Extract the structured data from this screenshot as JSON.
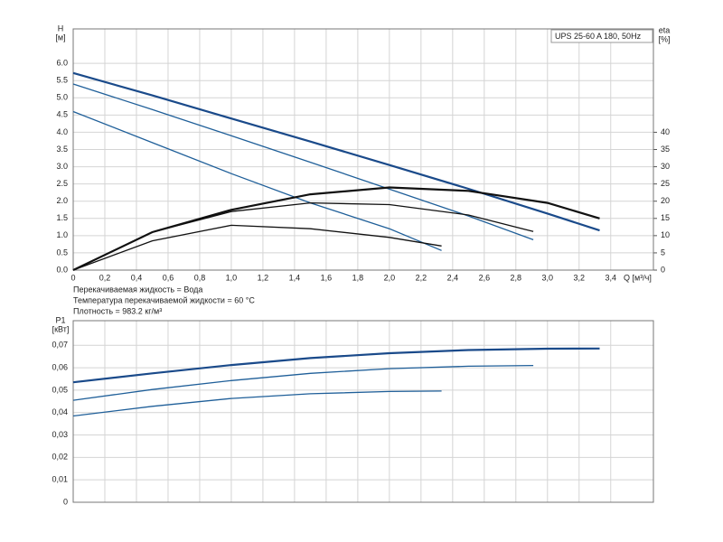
{
  "chart_data": [
    {
      "type": "line",
      "legend_box": "UPS 25-60 A 180, 50Hz",
      "ylabel": "H",
      "yunit": "[м]",
      "y2label": "eta",
      "y2unit": "[%]",
      "xlabel": "Q [м³/ч]",
      "annotations": [
        "Перекачиваемая жидкость = Вода",
        "Температура перекачиваемой жидкости = 60 °C",
        "Плотность = 983.2 кг/м³"
      ],
      "xlim": [
        0,
        3.67
      ],
      "ylim": [
        0,
        7
      ],
      "y2lim": [
        0,
        70
      ],
      "xticks": [
        0,
        {
          "value": 0.2,
          "label": "0,2"
        },
        {
          "value": 0.4,
          "label": "0,4"
        },
        {
          "value": 0.6,
          "label": "0,6"
        },
        {
          "value": 0.8,
          "label": "0,8"
        },
        {
          "value": 1.0,
          "label": "1,0"
        },
        {
          "value": 1.2,
          "label": "1,2"
        },
        {
          "value": 1.4,
          "label": "1,4"
        },
        {
          "value": 1.6,
          "label": "1,6"
        },
        {
          "value": 1.8,
          "label": "1,8"
        },
        {
          "value": 2.0,
          "label": "2,0"
        },
        {
          "value": 2.2,
          "label": "2,2"
        },
        {
          "value": 2.4,
          "label": "2,4"
        },
        {
          "value": 2.6,
          "label": "2,6"
        },
        {
          "value": 2.8,
          "label": "2,8"
        },
        {
          "value": 3.0,
          "label": "3,0"
        },
        {
          "value": 3.2,
          "label": "3,2"
        },
        {
          "value": 3.4,
          "label": "3,4"
        }
      ],
      "yticks": [
        {
          "value": 0,
          "label": "0.0"
        },
        0.5,
        {
          "value": 1,
          "label": "1.0"
        },
        1.5,
        {
          "value": 2,
          "label": "2.0"
        },
        2.5,
        {
          "value": 3,
          "label": "3.0"
        },
        3.5,
        {
          "value": 4,
          "label": "4.0"
        },
        4.5,
        {
          "value": 5,
          "label": "5.0"
        },
        5.5,
        {
          "value": 6,
          "label": "6.0"
        }
      ],
      "y2ticks": [
        0,
        5,
        10,
        15,
        20,
        25,
        30,
        35,
        40
      ],
      "grid": true,
      "series": [
        {
          "color": "#1a4a8a",
          "x": [
            0,
            0.5,
            1,
            1.5,
            2,
            2.5,
            3,
            3.33
          ],
          "values": [
            5.72,
            5.07,
            4.4,
            3.73,
            3.05,
            2.36,
            1.64,
            1.15
          ]
        },
        {
          "color": "#1f5f99",
          "x": [
            0,
            0.5,
            1,
            1.5,
            2,
            2.5,
            2.91
          ],
          "values": [
            5.4,
            4.66,
            3.9,
            3.13,
            2.35,
            1.57,
            0.88
          ]
        },
        {
          "color": "#1f5f99",
          "x": [
            0,
            0.5,
            1,
            1.5,
            2,
            2.33
          ],
          "values": [
            4.6,
            3.7,
            2.8,
            1.95,
            1.2,
            0.57
          ]
        },
        {
          "color": "#111111",
          "axis": "y2",
          "x": [
            0,
            0.5,
            1,
            1.5,
            2,
            2.5,
            3,
            3.33
          ],
          "values": [
            0,
            11,
            17.5,
            22,
            24,
            23,
            19.5,
            15
          ]
        },
        {
          "color": "#111111",
          "axis": "y2",
          "x": [
            0,
            0.5,
            1,
            1.5,
            2,
            2.5,
            2.91
          ],
          "values": [
            0,
            11,
            17,
            19.5,
            19,
            16,
            11.2
          ]
        },
        {
          "color": "#111111",
          "axis": "y2",
          "x": [
            0,
            0.5,
            1,
            1.5,
            2,
            2.33
          ],
          "values": [
            0,
            8.5,
            13,
            12,
            9.5,
            7
          ]
        }
      ]
    },
    {
      "type": "line",
      "ylabel": "P1",
      "yunit": "[кВт]",
      "xlim": [
        0,
        3.67
      ],
      "ylim": [
        0,
        0.081
      ],
      "yticks": [
        0,
        {
          "value": 0.01,
          "label": "0,01"
        },
        {
          "value": 0.02,
          "label": "0,02"
        },
        {
          "value": 0.03,
          "label": "0,03"
        },
        {
          "value": 0.04,
          "label": "0,04"
        },
        {
          "value": 0.05,
          "label": "0,05"
        },
        {
          "value": 0.06,
          "label": "0,06"
        },
        {
          "value": 0.07,
          "label": "0,07"
        }
      ],
      "grid": true,
      "series": [
        {
          "color": "#1a4a8a",
          "x": [
            0,
            0.5,
            1,
            1.5,
            2,
            2.5,
            3,
            3.33
          ],
          "values": [
            0.0535,
            0.0575,
            0.0612,
            0.0643,
            0.0665,
            0.0679,
            0.0685,
            0.0686
          ]
        },
        {
          "color": "#1f5f99",
          "x": [
            0,
            0.5,
            1,
            1.5,
            2,
            2.5,
            2.91
          ],
          "values": [
            0.0455,
            0.0503,
            0.0543,
            0.0575,
            0.0596,
            0.0607,
            0.061
          ]
        },
        {
          "color": "#1f5f99",
          "x": [
            0,
            0.5,
            1,
            1.5,
            2,
            2.33
          ],
          "values": [
            0.0385,
            0.0428,
            0.0463,
            0.0484,
            0.0494,
            0.0496
          ]
        }
      ]
    }
  ]
}
